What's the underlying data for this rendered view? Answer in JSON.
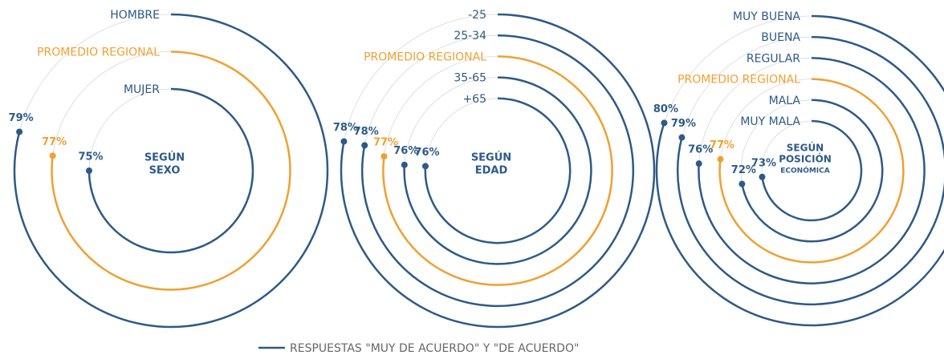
{
  "chart_data": [
    {
      "type": "radial_bar",
      "title_lines": [
        "SEGÚN",
        "SEXO"
      ],
      "categories": [
        "HOMBRE",
        "PROMEDIO REGIONAL",
        "MUJER"
      ],
      "values": [
        79,
        77,
        75
      ],
      "value_labels": [
        "79%",
        "77%",
        "75%"
      ],
      "colors": [
        "#2d5a87",
        "#f0a030",
        "#2d5a87"
      ]
    },
    {
      "type": "radial_bar",
      "title_lines": [
        "SEGÚN",
        "EDAD"
      ],
      "categories": [
        "-25",
        "25-34",
        "PROMEDIO REGIONAL",
        "35-65",
        "+65"
      ],
      "values": [
        78,
        78,
        77,
        76,
        76
      ],
      "value_labels": [
        "78%",
        "78%",
        "77%",
        "76%",
        "76%"
      ],
      "colors": [
        "#2d5a87",
        "#2d5a87",
        "#f0a030",
        "#2d5a87",
        "#2d5a87"
      ]
    },
    {
      "type": "radial_bar",
      "title_lines": [
        "SEGÚN",
        "POSICIÓN",
        "ECONÓMICA"
      ],
      "categories": [
        "MUY BUENA",
        "BUENA",
        "REGULAR",
        "PROMEDIO REGIONAL",
        "MALA",
        "MUY MALA"
      ],
      "values": [
        80,
        79,
        76,
        77,
        72,
        73
      ],
      "value_labels": [
        "80%",
        "79%",
        "76%",
        "77%",
        "72%",
        "73%"
      ],
      "colors": [
        "#2d5a87",
        "#2d5a87",
        "#2d5a87",
        "#f0a030",
        "#2d5a87",
        "#2d5a87"
      ]
    }
  ],
  "legend": "RESPUESTAS \"MUY DE ACUERDO\" Y \"DE ACUERDO\""
}
